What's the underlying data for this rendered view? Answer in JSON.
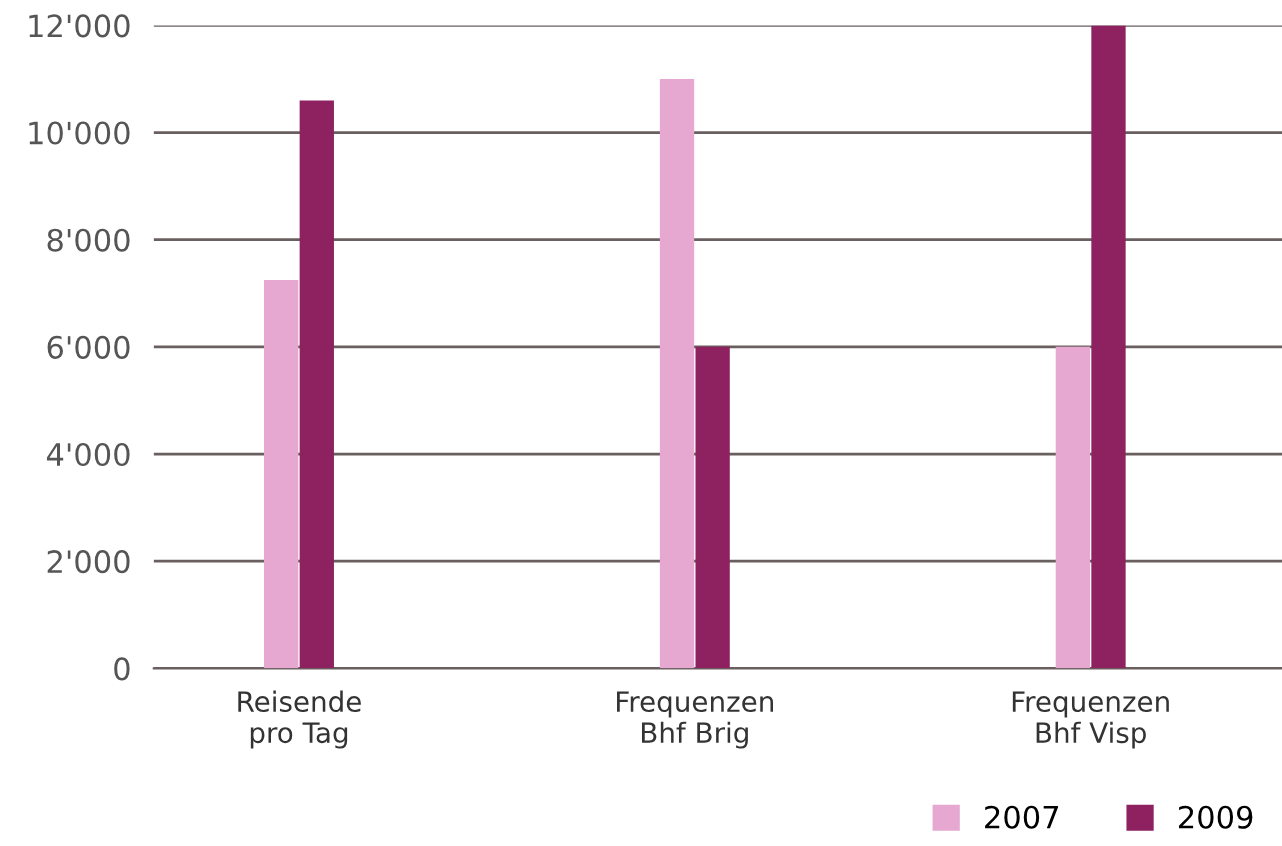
{
  "chart_data": {
    "type": "bar",
    "categories": [
      "Reisende\npro Tag",
      "Frequenzen\nBhf Brig",
      "Frequenzen\nBhf Visp"
    ],
    "series": [
      {
        "name": "2007",
        "color": "#e6a8d0",
        "values": [
          7250,
          11000,
          6000
        ]
      },
      {
        "name": "2009",
        "color": "#8e2160",
        "values": [
          10600,
          6000,
          12000
        ]
      }
    ],
    "ylim": [
      0,
      12000
    ],
    "yticks": [
      0,
      {
        "value": 2000,
        "label": "2'000"
      },
      {
        "value": 4000,
        "label": "4'000"
      },
      {
        "value": 6000,
        "label": "6'000"
      },
      {
        "value": 8000,
        "label": "8'000"
      },
      {
        "value": 10000,
        "label": "10'000"
      },
      {
        "value": 12000,
        "label": "12'000"
      }
    ],
    "grid": "y",
    "legend": "bottom right"
  }
}
